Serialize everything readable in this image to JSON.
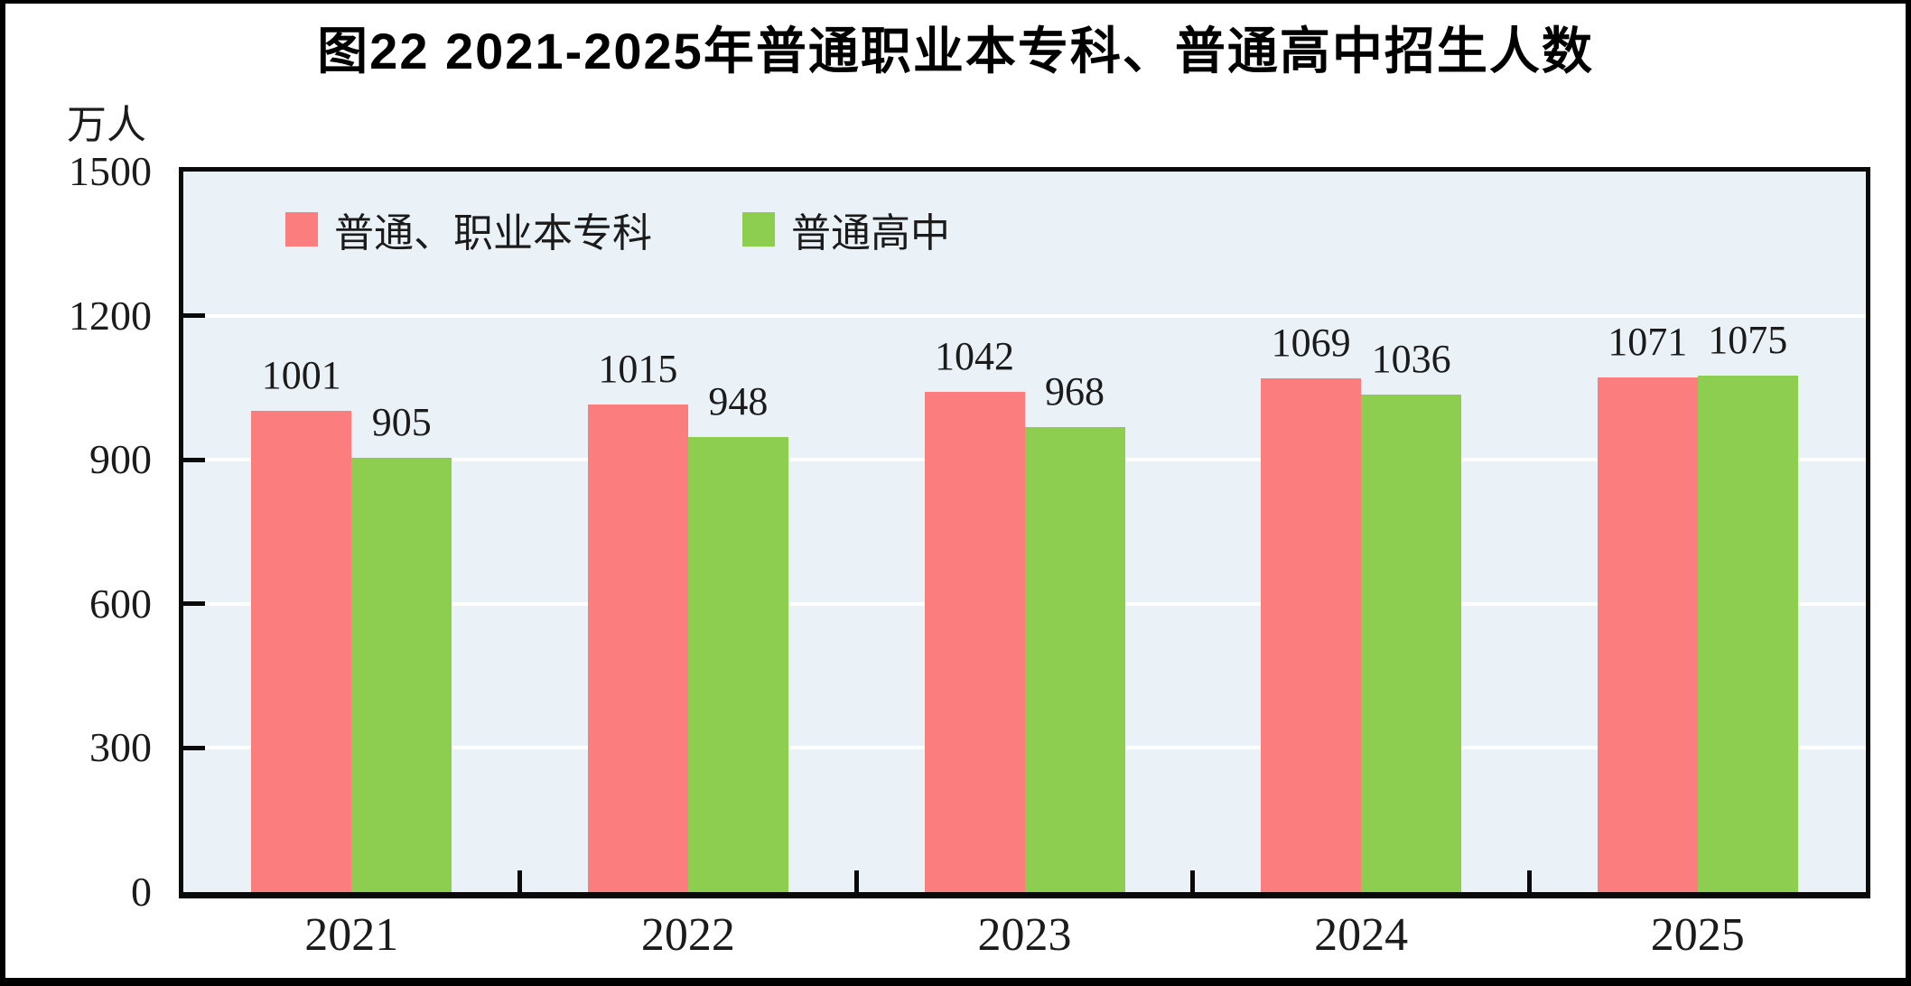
{
  "chart_data": {
    "type": "bar",
    "title": "图22  2021-2025年普通职业本专科、普通高中招生人数",
    "unit_label": "万人",
    "categories": [
      "2021",
      "2022",
      "2023",
      "2024",
      "2025"
    ],
    "series": [
      {
        "name": "普通、职业本专科",
        "color": "#FC7D7D",
        "values": [
          1001,
          1015,
          1042,
          1069,
          1071
        ]
      },
      {
        "name": "普通高中",
        "color": "#8DCE50",
        "values": [
          905,
          948,
          968,
          1036,
          1075
        ]
      }
    ],
    "ylim": [
      0,
      1500
    ],
    "yticks": [
      0,
      300,
      600,
      900,
      1200,
      1500
    ],
    "grid": true,
    "gridline_color": "#ffffff",
    "plot_bg": "#EAF2F8",
    "frame_color": "#0a0a0a",
    "legend_position": "top-left-inside",
    "value_labels_shown": true
  }
}
